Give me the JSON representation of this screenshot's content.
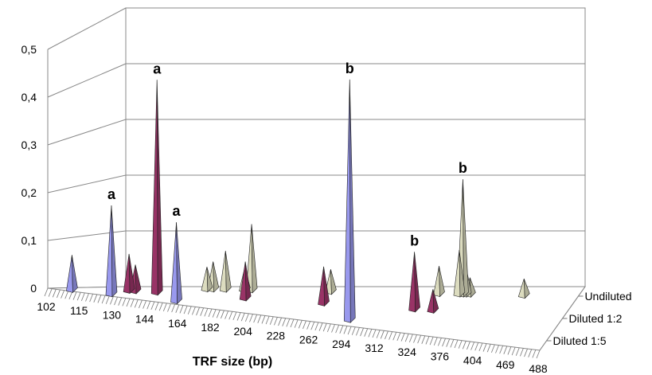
{
  "chart_data": {
    "type": "bar",
    "subtype": "3d-cone",
    "xlabel": "TRF size (bp)",
    "ylabel": "",
    "ylim": [
      0,
      0.5
    ],
    "yticks": [
      "0",
      "0,1",
      "0,2",
      "0,3",
      "0,4",
      "0,5"
    ],
    "xticks": [
      "102",
      "115",
      "130",
      "144",
      "164",
      "182",
      "204",
      "228",
      "262",
      "294",
      "312",
      "324",
      "376",
      "404",
      "469",
      "488"
    ],
    "depth_labels": [
      "Undiluted",
      "Diluted 1:2",
      "Diluted 1:5"
    ],
    "grid": true,
    "legend": "none",
    "series": [
      {
        "name": "Undiluted",
        "color": "#dcdcbf",
        "points": [
          {
            "bp": 144,
            "value": 0.04
          },
          {
            "bp": 148,
            "value": 0.05
          },
          {
            "bp": 156,
            "value": 0.07
          },
          {
            "bp": 168,
            "value": 0.04
          },
          {
            "bp": 172,
            "value": 0.12
          },
          {
            "bp": 228,
            "value": 0.04
          },
          {
            "bp": 318,
            "value": 0.05
          },
          {
            "bp": 332,
            "value": 0.08
          },
          {
            "bp": 338,
            "value": 0.21,
            "label": "b"
          },
          {
            "bp": 343,
            "value": 0.05
          },
          {
            "bp": 350,
            "value": 0.03
          },
          {
            "bp": 420,
            "value": 0.03
          }
        ]
      },
      {
        "name": "Diluted 1:2",
        "color": "#993366",
        "points": [
          {
            "bp": 120,
            "value": 0.07
          },
          {
            "bp": 123,
            "value": 0.05
          },
          {
            "bp": 133,
            "value": 0.41,
            "label": "a"
          },
          {
            "bp": 182,
            "value": 0.07
          },
          {
            "bp": 244,
            "value": 0.07
          },
          {
            "bp": 316,
            "value": 0.11,
            "label": "b"
          },
          {
            "bp": 323,
            "value": 0.04
          }
        ]
      },
      {
        "name": "Diluted 1:5",
        "color": "#9999ee",
        "points": [
          {
            "bp": 107,
            "value": 0.07
          },
          {
            "bp": 124,
            "value": 0.18,
            "label": "a"
          },
          {
            "bp": 156,
            "value": 0.16,
            "label": "a"
          },
          {
            "bp": 292,
            "value": 0.49,
            "label": "b"
          }
        ]
      }
    ]
  }
}
